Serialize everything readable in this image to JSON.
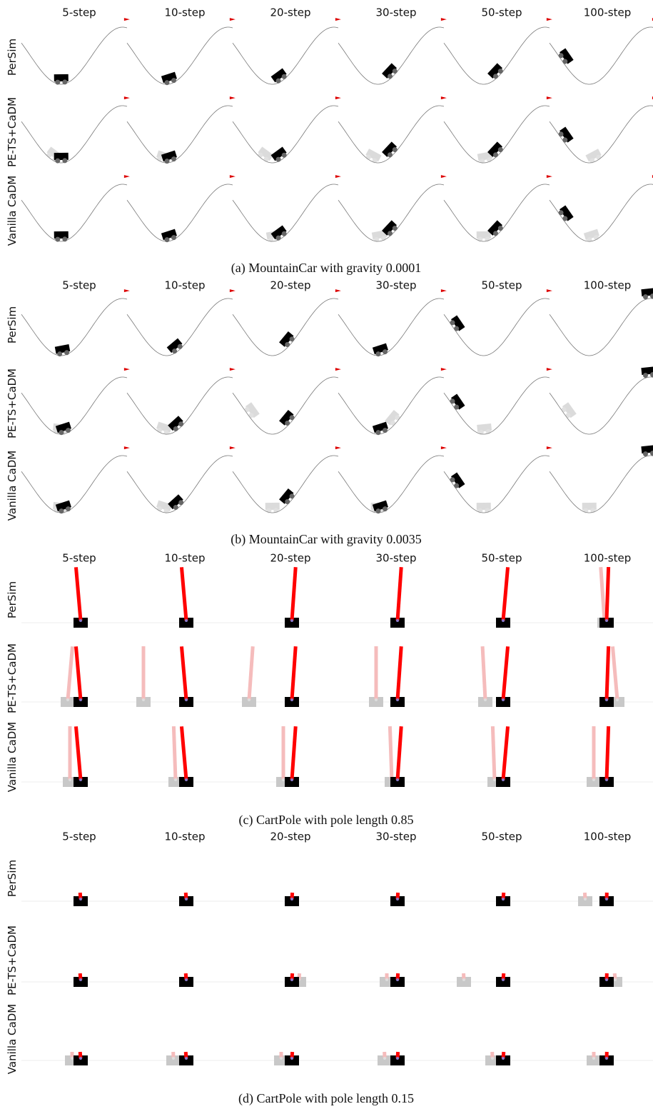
{
  "panels": [
    {
      "columns": [
        "5-step",
        "10-step",
        "20-step",
        "30-step",
        "50-step",
        "100-step"
      ],
      "rows": [
        "PerSim",
        "PE-TS+CaDM",
        "Vanilla CaDM"
      ],
      "caption": "(a) MountainCar with gravity 0.0001"
    },
    {
      "columns": [
        "5-step",
        "10-step",
        "20-step",
        "30-step",
        "50-step",
        "100-step"
      ],
      "rows": [
        "PerSim",
        "PE-TS+CaDM",
        "Vanilla CaDM"
      ],
      "caption": "(b) MountainCar with gravity 0.0035"
    },
    {
      "columns": [
        "5-step",
        "10-step",
        "20-step",
        "30-step",
        "50-step",
        "100-step"
      ],
      "rows": [
        "PerSim",
        "PE-TS+CaDM",
        "Vanilla CaDM"
      ],
      "caption": "(c) CartPole with pole length 0.85"
    },
    {
      "columns": [
        "5-step",
        "10-step",
        "20-step",
        "30-step",
        "50-step",
        "100-step"
      ],
      "rows": [
        "PerSim",
        "PE-TS+CaDM",
        "Vanilla CaDM"
      ],
      "caption": "(d) CartPole with pole length 0.15"
    }
  ]
}
